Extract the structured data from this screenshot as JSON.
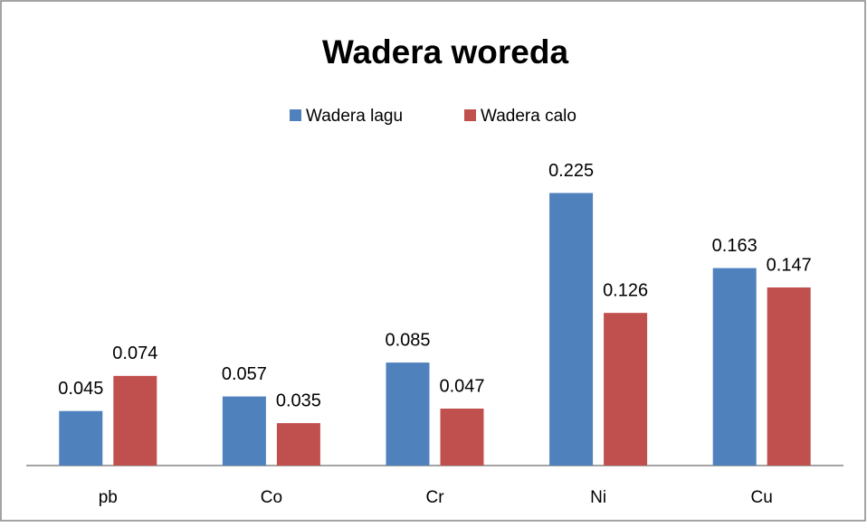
{
  "chart_data": {
    "type": "bar",
    "title": "Wadera woreda",
    "categories": [
      "pb",
      "Co",
      "Cr",
      "Ni",
      "Cu"
    ],
    "series": [
      {
        "name": "Wadera lagu",
        "color": "#4f81bd",
        "values": [
          0.045,
          0.057,
          0.085,
          0.225,
          0.163
        ]
      },
      {
        "name": "Wadera calo",
        "color": "#c0504d",
        "values": [
          0.074,
          0.035,
          0.047,
          0.126,
          0.147
        ]
      }
    ],
    "ylim": [
      0,
      0.25
    ],
    "legend": "top"
  }
}
